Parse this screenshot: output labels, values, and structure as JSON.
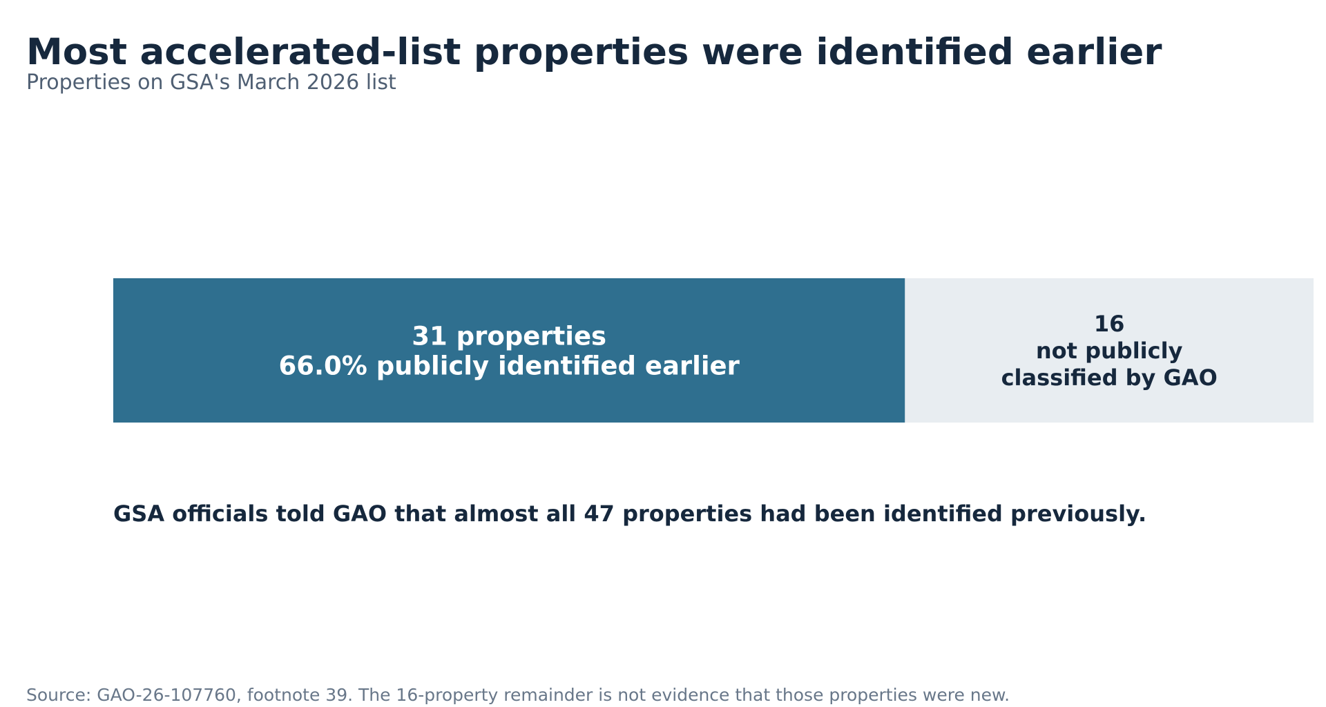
{
  "header": {
    "title": "Most accelerated-list properties were identified earlier",
    "subtitle": "Properties on GSA's March 2026 list"
  },
  "chart_data": {
    "type": "bar",
    "orientation": "horizontal",
    "stacked": true,
    "total": 47,
    "segments": [
      {
        "value": 31,
        "percent": 66.0,
        "color": "#2f6f8f",
        "label_lines": [
          "31 properties",
          "66.0% publicly identified earlier"
        ],
        "label_color": "#ffffff"
      },
      {
        "value": 16,
        "color": "#e8edf1",
        "label_lines": [
          "16",
          "not publicly",
          "classified by GAO"
        ],
        "label_color": "#16283d"
      }
    ],
    "grid": false,
    "axes_visible": false
  },
  "note": "GSA officials told GAO that almost all 47 properties had been identified previously.",
  "source": "Source: GAO-26-107760, footnote 39. The 16-property remainder is not evidence that those properties were new."
}
